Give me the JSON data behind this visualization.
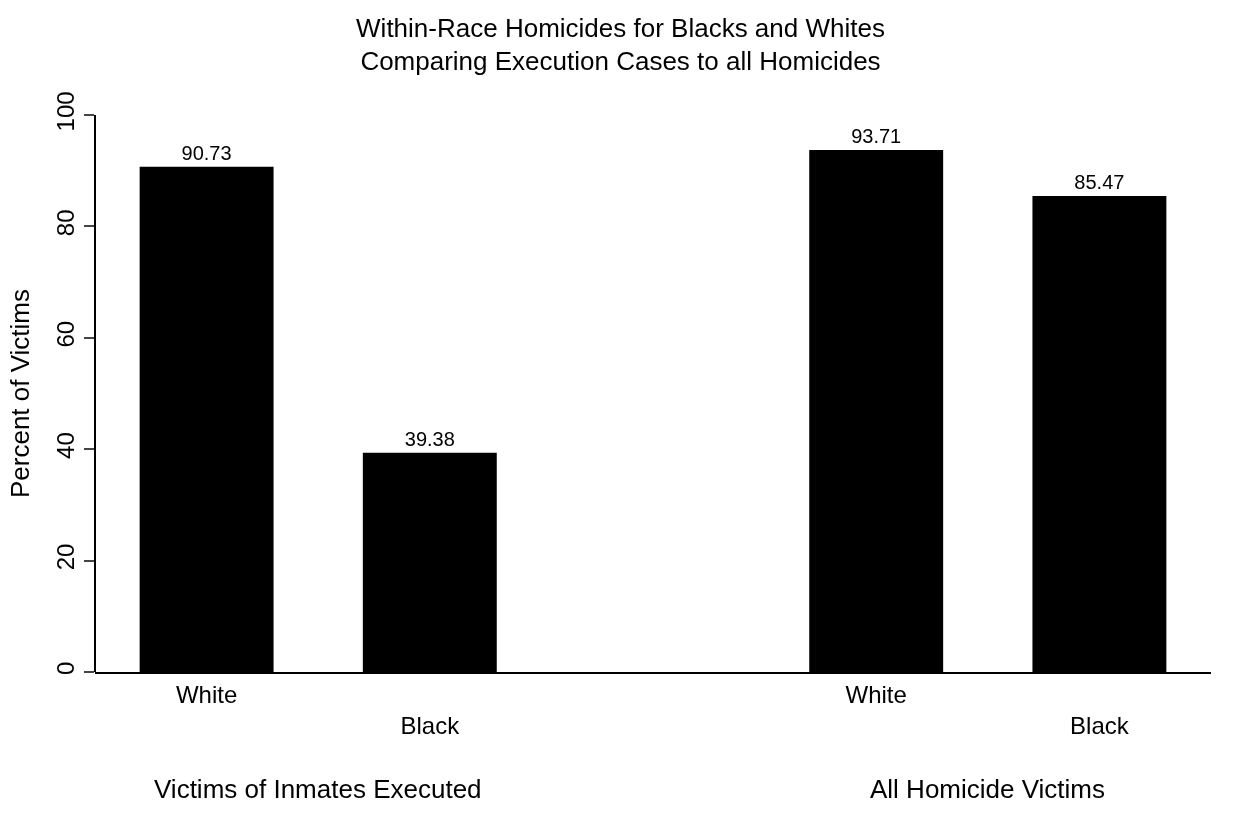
{
  "chart_data": {
    "type": "bar",
    "title": "Within-Race Homicides for Blacks and Whites\nComparing Execution Cases to all Homicides",
    "ylabel": "Percent of Victims",
    "categories": [
      "White",
      "Black",
      null,
      "White",
      "Black"
    ],
    "values": [
      90.73,
      39.38,
      null,
      93.71,
      85.47
    ],
    "color": "#000000",
    "ylim": [
      0,
      100
    ],
    "yticks": [
      0,
      20,
      40,
      60,
      80,
      100
    ],
    "data_labels": true,
    "annotations": [
      "Victims of Inmates Executed",
      "All Homicide Victims"
    ]
  }
}
